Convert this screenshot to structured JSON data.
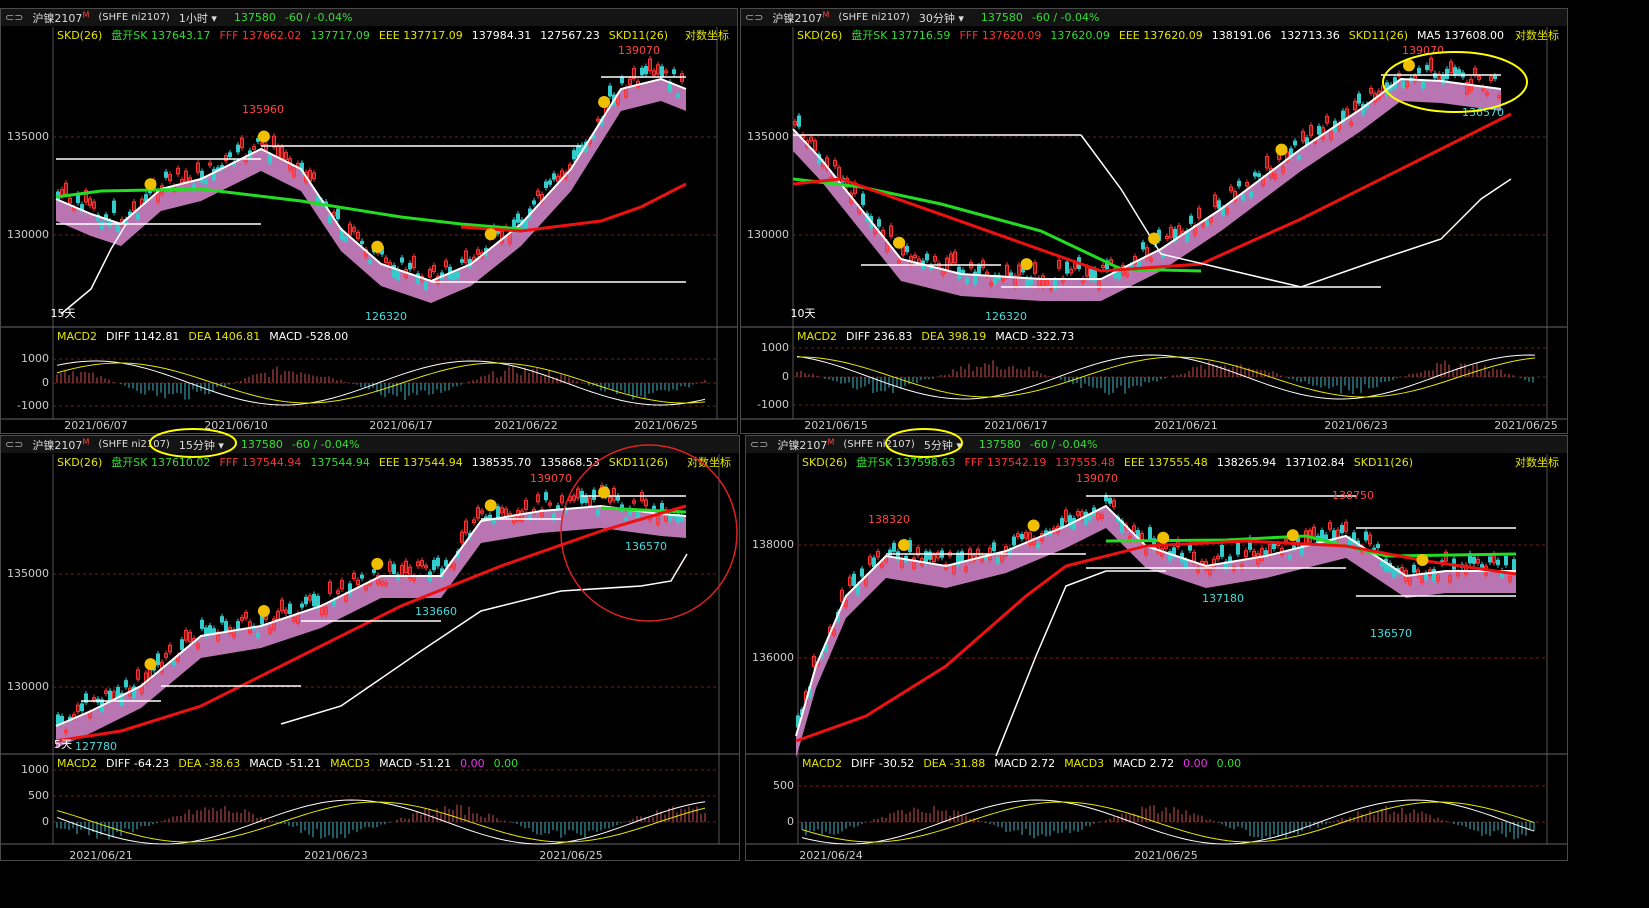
{
  "panels": [
    {
      "header": {
        "symbol": "沪镍2107",
        "flag": "M",
        "exchange": "(SHFE ni2107)",
        "period": "1小时",
        "price": "137580",
        "change": "-60 / -0.04%"
      },
      "indicator": [
        {
          "text": "SKD(26)",
          "color": "#e6e600"
        },
        {
          "text": "盘开SK 137643.17",
          "color": "#33dd33"
        },
        {
          "text": "FFF 137662.02",
          "color": "#ff3333"
        },
        {
          "text": "137717.09",
          "color": "#33dd33"
        },
        {
          "text": "EEE 137717.09",
          "color": "#e6e600"
        },
        {
          "text": "137984.31",
          "color": "#ffffff"
        },
        {
          "text": "127567.23",
          "color": "#ffffff"
        },
        {
          "text": "SKD11(26)",
          "color": "#e6e600"
        },
        {
          "text": "对数坐标",
          "color": "#e6e600"
        }
      ],
      "price_axis": [
        "135000",
        "130000"
      ],
      "annotations": [
        "139070",
        "135960",
        "126320",
        "15天"
      ],
      "macd_header": [
        {
          "text": "MACD2",
          "color": "#e6e600"
        },
        {
          "text": "DIFF 1142.81",
          "color": "#ffffff"
        },
        {
          "text": "DEA 1406.81",
          "color": "#e6e600"
        },
        {
          "text": "MACD -528.00",
          "color": "#ffffff"
        }
      ],
      "macd_axis": [
        "1000",
        "0",
        "-1000"
      ],
      "dates": [
        "2021/06/07",
        "2021/06/10",
        "2021/06/17",
        "2021/06/22",
        "2021/06/25"
      ]
    },
    {
      "header": {
        "symbol": "沪镍2107",
        "flag": "M",
        "exchange": "(SHFE ni2107)",
        "period": "30分钟",
        "price": "137580",
        "change": "-60 / -0.04%"
      },
      "indicator": [
        {
          "text": "SKD(26)",
          "color": "#e6e600"
        },
        {
          "text": "盘开SK 137716.59",
          "color": "#33dd33"
        },
        {
          "text": "FFF 137620.09",
          "color": "#ff3333"
        },
        {
          "text": "137620.09",
          "color": "#33dd33"
        },
        {
          "text": "EEE 137620.09",
          "color": "#e6e600"
        },
        {
          "text": "138191.06",
          "color": "#ffffff"
        },
        {
          "text": "132713.36",
          "color": "#ffffff"
        },
        {
          "text": "SKD11(26)",
          "color": "#e6e600"
        },
        {
          "text": "MA5 137608.00",
          "color": "#ffffff"
        },
        {
          "text": "对数坐标",
          "color": "#e6e600"
        }
      ],
      "price_axis": [
        "135000",
        "130000"
      ],
      "annotations": [
        "139070",
        "136570",
        "126320",
        "10天"
      ],
      "macd_header": [
        {
          "text": "MACD2",
          "color": "#e6e600"
        },
        {
          "text": "DIFF 236.83",
          "color": "#ffffff"
        },
        {
          "text": "DEA 398.19",
          "color": "#e6e600"
        },
        {
          "text": "MACD -322.73",
          "color": "#ffffff"
        }
      ],
      "macd_axis": [
        "1000",
        "0",
        "-1000"
      ],
      "dates": [
        "2021/06/15",
        "2021/06/17",
        "2021/06/21",
        "2021/06/23",
        "2021/06/25"
      ]
    },
    {
      "header": {
        "symbol": "沪镍2107",
        "flag": "M",
        "exchange": "(SHFE ni2107)",
        "period": "15分钟",
        "price": "137580",
        "change": "-60 / -0.04%"
      },
      "indicator": [
        {
          "text": "SKD(26)",
          "color": "#e6e600"
        },
        {
          "text": "盘开SK 137610.02",
          "color": "#33dd33"
        },
        {
          "text": "FFF 137544.94",
          "color": "#ff3333"
        },
        {
          "text": "137544.94",
          "color": "#33dd33"
        },
        {
          "text": "EEE 137544.94",
          "color": "#e6e600"
        },
        {
          "text": "138535.70",
          "color": "#ffffff"
        },
        {
          "text": "135868.53",
          "color": "#ffffff"
        },
        {
          "text": "SKD11(26)",
          "color": "#e6e600"
        },
        {
          "text": "对数坐标",
          "color": "#e6e600"
        }
      ],
      "price_axis": [
        "135000",
        "130000"
      ],
      "annotations": [
        "139070",
        "136570",
        "133660",
        "127780",
        "5天"
      ],
      "macd_header": [
        {
          "text": "MACD2",
          "color": "#e6e600"
        },
        {
          "text": "DIFF -64.23",
          "color": "#ffffff"
        },
        {
          "text": "DEA -38.63",
          "color": "#e6e600"
        },
        {
          "text": "MACD -51.21",
          "color": "#ffffff"
        },
        {
          "text": "MACD3",
          "color": "#e6e600"
        },
        {
          "text": "MACD -51.21",
          "color": "#ffffff"
        },
        {
          "text": "0.00",
          "color": "#ee33ee"
        },
        {
          "text": "0.00",
          "color": "#33dd33"
        }
      ],
      "macd_axis": [
        "1000",
        "500",
        "0"
      ],
      "dates": [
        "2021/06/21",
        "2021/06/23",
        "2021/06/25"
      ]
    },
    {
      "header": {
        "symbol": "沪镍2107",
        "flag": "M",
        "exchange": "(SHFE ni2107)",
        "period": "5分钟",
        "price": "137580",
        "change": "-60 / -0.04%"
      },
      "indicator": [
        {
          "text": "SKD(26)",
          "color": "#e6e600"
        },
        {
          "text": "盘开SK 137598.63",
          "color": "#33dd33"
        },
        {
          "text": "FFF 137542.19",
          "color": "#ff3333"
        },
        {
          "text": "137555.48",
          "color": "#ff3333"
        },
        {
          "text": "EEE 137555.48",
          "color": "#e6e600"
        },
        {
          "text": "138265.94",
          "color": "#ffffff"
        },
        {
          "text": "137102.84",
          "color": "#ffffff"
        },
        {
          "text": "SKD11(26)",
          "color": "#e6e600"
        },
        {
          "text": "对数坐标",
          "color": "#e6e600"
        }
      ],
      "price_axis": [
        "138000",
        "136000"
      ],
      "annotations": [
        "138320",
        "139070",
        "138750",
        "137180",
        "136570"
      ],
      "macd_header": [
        {
          "text": "MACD2",
          "color": "#e6e600"
        },
        {
          "text": "DIFF -30.52",
          "color": "#ffffff"
        },
        {
          "text": "DEA -31.88",
          "color": "#e6e600"
        },
        {
          "text": "MACD 2.72",
          "color": "#ffffff"
        },
        {
          "text": "MACD3",
          "color": "#e6e600"
        },
        {
          "text": "MACD 2.72",
          "color": "#ffffff"
        },
        {
          "text": "0.00",
          "color": "#ee33ee"
        },
        {
          "text": "0.00",
          "color": "#33dd33"
        }
      ],
      "macd_axis": [
        "500",
        "0"
      ],
      "dates": [
        "2021/06/24",
        "2021/06/25"
      ]
    }
  ]
}
